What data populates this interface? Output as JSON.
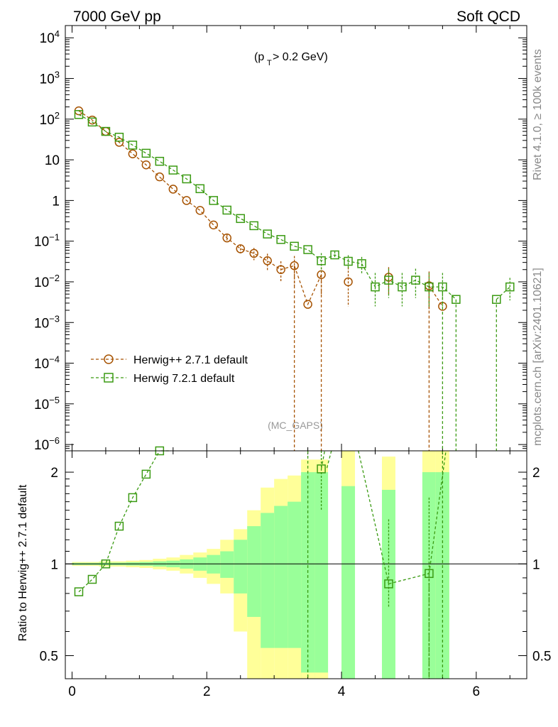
{
  "header": {
    "left": "7000 GeV pp",
    "right": "Soft QCD"
  },
  "side_labels": {
    "rivet": "Rivet 4.1.0, ≥ 100k events",
    "mcplots": "mcplots.cern.ch [arXiv:2401.10621]"
  },
  "plot": {
    "cut_label_p": "(p",
    "cut_label_sub": "T",
    "cut_label_rest": " > 0.2 GeV)",
    "analysis_label": "(MC_GAPS)",
    "ratio_ylabel": "Ratio to Herwig++ 2.7.1 default"
  },
  "legend": [
    {
      "label": "Herwig++ 2.7.1 default",
      "color": "#a65200",
      "marker": "circle"
    },
    {
      "label": "Herwig 7.2.1 default",
      "color": "#3a9a12",
      "marker": "square"
    }
  ],
  "colors": {
    "band_outer": "#ffff99",
    "band_inner": "#99ff99"
  },
  "chart_data": {
    "type": "line",
    "title": "7000 GeV pp — Soft QCD",
    "x_ticks": [
      "0",
      "2",
      "4",
      "6"
    ],
    "xlim": [
      -0.1,
      6.75
    ],
    "main": {
      "yscale": "log",
      "ylim": [
        7e-07,
        20000
      ],
      "y_tick_labels": [
        {
          "v": 10000,
          "base": "10",
          "exp": "4"
        },
        {
          "v": 1000,
          "base": "10",
          "exp": "3"
        },
        {
          "v": 100,
          "base": "10",
          "exp": "2"
        },
        {
          "v": 10,
          "base": "10",
          "exp": ""
        },
        {
          "v": 1,
          "base": "1",
          "exp": ""
        },
        {
          "v": 0.1,
          "base": "10",
          "exp": "−1"
        },
        {
          "v": 0.01,
          "base": "10",
          "exp": "−2"
        },
        {
          "v": 0.001,
          "base": "10",
          "exp": "−3"
        },
        {
          "v": 0.0001,
          "base": "10",
          "exp": "−4"
        },
        {
          "v": 1e-05,
          "base": "10",
          "exp": "−5"
        },
        {
          "v": 1e-06,
          "base": "10",
          "exp": "−6"
        }
      ]
    },
    "series": [
      {
        "name": "Herwig++ 2.7.1 default",
        "marker": "circle",
        "x": [
          0.1,
          0.3,
          0.5,
          0.7,
          0.9,
          1.1,
          1.3,
          1.5,
          1.7,
          1.9,
          2.1,
          2.3,
          2.5,
          2.7,
          2.9,
          3.1,
          3.3,
          3.5,
          3.7,
          3.9,
          4.1,
          4.3,
          4.5,
          4.7,
          4.9,
          5.1,
          5.3,
          5.5,
          5.7
        ],
        "y": [
          160,
          95,
          50,
          27,
          14,
          7.5,
          3.8,
          1.9,
          1.0,
          0.57,
          0.25,
          0.12,
          0.065,
          0.05,
          0.033,
          0.02,
          0.025,
          0.0028,
          0.015,
          null,
          0.01,
          null,
          null,
          0.013,
          null,
          null,
          0.008,
          0.0025,
          null
        ],
        "err_hi": [
          null,
          null,
          null,
          null,
          null,
          null,
          null,
          null,
          null,
          null,
          null,
          0.025,
          0.017,
          0.018,
          0.016,
          0.012,
          0.018,
          null,
          0.013,
          null,
          0.013,
          null,
          null,
          0.01,
          null,
          null,
          0.01,
          null,
          null
        ],
        "err_lo": [
          null,
          null,
          null,
          null,
          null,
          null,
          null,
          null,
          null,
          null,
          null,
          0.022,
          0.015,
          0.016,
          0.015,
          0.01,
          0.017,
          null,
          0.01,
          null,
          0.0075,
          null,
          null,
          0.008,
          null,
          null,
          0.006,
          null,
          null
        ],
        "drop_after": [
          16,
          26
        ],
        "drop_before": [
          18
        ]
      },
      {
        "name": "Herwig 7.2.1 default",
        "marker": "square",
        "x": [
          0.1,
          0.3,
          0.5,
          0.7,
          0.9,
          1.1,
          1.3,
          1.5,
          1.7,
          1.9,
          2.1,
          2.3,
          2.5,
          2.7,
          2.9,
          3.1,
          3.3,
          3.5,
          3.7,
          3.9,
          4.1,
          4.3,
          4.5,
          4.7,
          4.9,
          5.1,
          5.3,
          5.5,
          5.7,
          5.9,
          6.1,
          6.3,
          6.5
        ],
        "y": [
          130,
          85,
          50,
          36,
          23,
          14.5,
          9.2,
          5.6,
          3.4,
          1.95,
          1.0,
          0.58,
          0.36,
          0.24,
          0.15,
          0.11,
          0.075,
          0.062,
          0.033,
          0.046,
          0.032,
          0.028,
          0.0075,
          0.011,
          0.0075,
          0.011,
          0.0075,
          0.0075,
          0.0037,
          null,
          null,
          0.0037,
          0.0075
        ],
        "err_hi": [
          null,
          null,
          null,
          null,
          null,
          null,
          null,
          null,
          null,
          null,
          null,
          null,
          null,
          null,
          null,
          null,
          null,
          null,
          0.018,
          0.01,
          0.013,
          0.013,
          0.009,
          0.01,
          0.009,
          0.01,
          0.009,
          0.009,
          null,
          null,
          null,
          null,
          0.005
        ],
        "err_lo": [
          null,
          null,
          null,
          null,
          null,
          null,
          null,
          null,
          null,
          null,
          null,
          null,
          null,
          null,
          null,
          null,
          null,
          null,
          0.015,
          0.009,
          0.012,
          0.012,
          0.005,
          0.007,
          0.005,
          0.007,
          0.005,
          0.005,
          null,
          null,
          null,
          null,
          0.004
        ],
        "drop_after": [
          27,
          28
        ],
        "drop_before": [
          31
        ]
      }
    ],
    "ratio": {
      "ylabel": "Ratio to Herwig++ 2.7.1 default",
      "yscale": "log",
      "ylim": [
        0.42,
        2.35
      ],
      "y_ticks": [
        {
          "v": 0.5,
          "label": "0.5"
        },
        {
          "v": 1,
          "label": "1"
        },
        {
          "v": 2,
          "label": "2"
        }
      ],
      "bands": [
        {
          "x0": 0.0,
          "x1": 0.2,
          "o": [
            0.985,
            1.015
          ],
          "i": [
            0.992,
            1.008
          ]
        },
        {
          "x0": 0.2,
          "x1": 0.4,
          "o": [
            0.985,
            1.015
          ],
          "i": [
            0.992,
            1.008
          ]
        },
        {
          "x0": 0.4,
          "x1": 0.6,
          "o": [
            0.98,
            1.02
          ],
          "i": [
            0.99,
            1.01
          ]
        },
        {
          "x0": 0.6,
          "x1": 0.8,
          "o": [
            0.98,
            1.02
          ],
          "i": [
            0.99,
            1.01
          ]
        },
        {
          "x0": 0.8,
          "x1": 1.0,
          "o": [
            0.975,
            1.025
          ],
          "i": [
            0.988,
            1.012
          ]
        },
        {
          "x0": 1.0,
          "x1": 1.2,
          "o": [
            0.97,
            1.03
          ],
          "i": [
            0.985,
            1.015
          ]
        },
        {
          "x0": 1.2,
          "x1": 1.4,
          "o": [
            0.96,
            1.04
          ],
          "i": [
            0.98,
            1.02
          ]
        },
        {
          "x0": 1.4,
          "x1": 1.6,
          "o": [
            0.95,
            1.05
          ],
          "i": [
            0.975,
            1.025
          ]
        },
        {
          "x0": 1.6,
          "x1": 1.8,
          "o": [
            0.93,
            1.07
          ],
          "i": [
            0.965,
            1.035
          ]
        },
        {
          "x0": 1.8,
          "x1": 2.0,
          "o": [
            0.9,
            1.09
          ],
          "i": [
            0.95,
            1.05
          ]
        },
        {
          "x0": 2.0,
          "x1": 2.2,
          "o": [
            0.86,
            1.12
          ],
          "i": [
            0.93,
            1.07
          ]
        },
        {
          "x0": 2.2,
          "x1": 2.4,
          "o": [
            0.8,
            1.2
          ],
          "i": [
            0.9,
            1.1
          ]
        },
        {
          "x0": 2.4,
          "x1": 2.6,
          "o": [
            0.6,
            1.3
          ],
          "i": [
            0.8,
            1.2
          ]
        },
        {
          "x0": 2.6,
          "x1": 2.8,
          "o": [
            0.4,
            1.5
          ],
          "i": [
            0.67,
            1.33
          ]
        },
        {
          "x0": 2.8,
          "x1": 3.0,
          "o": [
            0.4,
            1.78
          ],
          "i": [
            0.53,
            1.47
          ]
        },
        {
          "x0": 3.0,
          "x1": 3.2,
          "o": [
            0.4,
            1.9
          ],
          "i": [
            0.53,
            1.55
          ]
        },
        {
          "x0": 3.2,
          "x1": 3.4,
          "o": [
            0.4,
            1.95
          ],
          "i": [
            0.53,
            1.6
          ]
        },
        {
          "x0": 3.4,
          "x1": 3.6,
          "o": [
            0.4,
            2.2
          ],
          "i": [
            0.4,
            2.0
          ]
        },
        {
          "x0": 3.6,
          "x1": 3.8,
          "o": [
            0.4,
            2.2
          ],
          "i": [
            0.4,
            2.0
          ]
        },
        {
          "x0": 4.0,
          "x1": 4.2,
          "o": [
            0.4,
            2.4
          ],
          "i": [
            0.4,
            1.8
          ]
        },
        {
          "x0": 4.6,
          "x1": 4.8,
          "o": [
            0.4,
            2.25
          ],
          "i": [
            0.4,
            1.75
          ]
        },
        {
          "x0": 5.2,
          "x1": 5.4,
          "o": [
            0.4,
            2.4
          ],
          "i": [
            0.4,
            2.0
          ]
        },
        {
          "x0": 5.4,
          "x1": 5.6,
          "o": [
            0.4,
            2.4
          ],
          "i": [
            0.4,
            2.0
          ]
        }
      ],
      "extra_outer": [
        {
          "x0": 3.4,
          "x1": 3.6,
          "lo": 0.4,
          "hi": 0.44
        },
        {
          "x0": 3.6,
          "x1": 3.8,
          "lo": 0.4,
          "hi": 0.44
        }
      ],
      "series_ratio": {
        "x": [
          0.1,
          0.3,
          0.5,
          0.7,
          0.9,
          1.1,
          1.3,
          3.7,
          4.7,
          5.3
        ],
        "y": [
          0.81,
          0.89,
          1.0,
          1.33,
          1.65,
          1.97,
          2.35,
          2.05,
          0.86,
          0.93
        ],
        "err_hi": [
          null,
          null,
          null,
          null,
          null,
          null,
          null,
          2.4,
          1.4,
          1.65
        ],
        "err_lo": [
          null,
          null,
          null,
          null,
          null,
          null,
          null,
          1.5,
          0.72,
          0.42
        ]
      }
    }
  }
}
